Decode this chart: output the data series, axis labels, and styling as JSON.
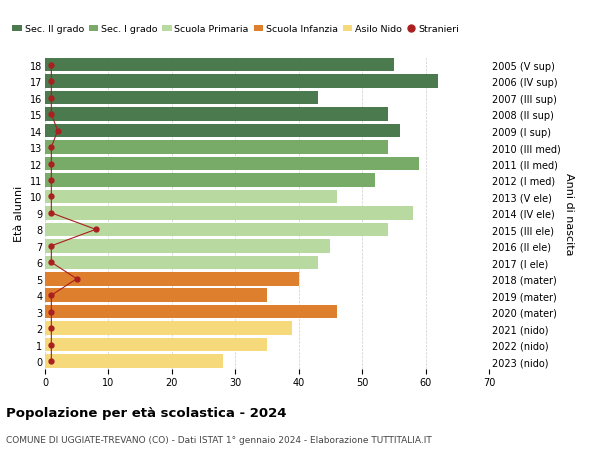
{
  "ages": [
    18,
    17,
    16,
    15,
    14,
    13,
    12,
    11,
    10,
    9,
    8,
    7,
    6,
    5,
    4,
    3,
    2,
    1,
    0
  ],
  "right_labels": [
    "2005 (V sup)",
    "2006 (IV sup)",
    "2007 (III sup)",
    "2008 (II sup)",
    "2009 (I sup)",
    "2010 (III med)",
    "2011 (II med)",
    "2012 (I med)",
    "2013 (V ele)",
    "2014 (IV ele)",
    "2015 (III ele)",
    "2016 (II ele)",
    "2017 (I ele)",
    "2018 (mater)",
    "2019 (mater)",
    "2020 (mater)",
    "2021 (nido)",
    "2022 (nido)",
    "2023 (nido)"
  ],
  "bar_values": [
    55,
    62,
    43,
    54,
    56,
    54,
    59,
    52,
    46,
    58,
    54,
    45,
    43,
    40,
    35,
    46,
    39,
    35,
    28
  ],
  "bar_colors": [
    "#4b7a4e",
    "#4b7a4e",
    "#4b7a4e",
    "#4b7a4e",
    "#4b7a4e",
    "#78aa68",
    "#78aa68",
    "#78aa68",
    "#b8d9a0",
    "#b8d9a0",
    "#b8d9a0",
    "#b8d9a0",
    "#b8d9a0",
    "#de7f2e",
    "#de7f2e",
    "#de7f2e",
    "#f5d97a",
    "#f5d97a",
    "#f5d97a"
  ],
  "stranieri_values": [
    1,
    1,
    1,
    1,
    2,
    1,
    1,
    1,
    1,
    1,
    8,
    1,
    1,
    5,
    1,
    1,
    1,
    1,
    1
  ],
  "stranieri_color": "#aa1f1f",
  "legend_labels": [
    "Sec. II grado",
    "Sec. I grado",
    "Scuola Primaria",
    "Scuola Infanzia",
    "Asilo Nido",
    "Stranieri"
  ],
  "legend_colors": [
    "#4b7a4e",
    "#78aa68",
    "#b8d9a0",
    "#de7f2e",
    "#f5d97a",
    "#aa1f1f"
  ],
  "ylabel": "Età alunni",
  "right_ylabel": "Anni di nascita",
  "xlim": [
    0,
    70
  ],
  "xticks": [
    0,
    10,
    20,
    30,
    40,
    50,
    60,
    70
  ],
  "title": "Popolazione per età scolastica - 2024",
  "subtitle": "COMUNE DI UGGIATE-TREVANO (CO) - Dati ISTAT 1° gennaio 2024 - Elaborazione TUTTITALIA.IT",
  "bg_color": "#ffffff",
  "grid_color": "#cccccc"
}
